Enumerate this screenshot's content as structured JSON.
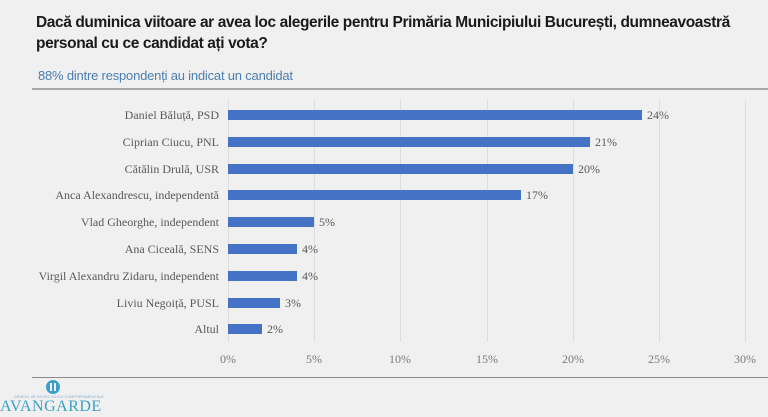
{
  "header": {
    "title": "Dacă duminica viitoare ar avea loc alegerile pentru Primăria Municipiului București, dumneavoastră personal cu ce candidat ați vota?",
    "subtitle": "88% dintre respondenți au indicat un candidat"
  },
  "logo": {
    "name": "AVANGARDE",
    "tagline": "GRUPUL DE STUDII SOCIO-COMPORTAMENTALE"
  },
  "axis": {
    "ticks": [
      "0%",
      "5%",
      "10%",
      "15%",
      "20%",
      "25%",
      "30%"
    ]
  },
  "bars": [
    {
      "label": "Daniel Băluță, PSD",
      "value": 24,
      "display": "24%"
    },
    {
      "label": "Ciprian Ciucu, PNL",
      "value": 21,
      "display": "21%"
    },
    {
      "label": "Cătălin Drulă, USR",
      "value": 20,
      "display": "20%"
    },
    {
      "label": "Anca Alexandrescu, independentă",
      "value": 17,
      "display": "17%"
    },
    {
      "label": "Vlad Gheorghe, independent",
      "value": 5,
      "display": "5%"
    },
    {
      "label": "Ana Ciceală, SENS",
      "value": 4,
      "display": "4%"
    },
    {
      "label": "Virgil Alexandru Zidaru, independent",
      "value": 4,
      "display": "4%"
    },
    {
      "label": "Liviu Negoiță, PUSL",
      "value": 3,
      "display": "3%"
    },
    {
      "label": "Altul",
      "value": 2,
      "display": "2%"
    }
  ],
  "colors": {
    "bar": "#4472c4",
    "subtitle": "#4a7fb0",
    "logo": "#3aa0c8"
  },
  "chart_data": {
    "type": "bar",
    "orientation": "horizontal",
    "title": "Dacă duminica viitoare ar avea loc alegerile pentru Primăria Municipiului București, dumneavoastră personal cu ce candidat ați vota?",
    "subtitle": "88% dintre respondenți au indicat un candidat",
    "categories": [
      "Daniel Băluță, PSD",
      "Ciprian Ciucu, PNL",
      "Cătălin Drulă, USR",
      "Anca Alexandrescu, independentă",
      "Vlad Gheorghe, independent",
      "Ana Ciceală, SENS",
      "Virgil Alexandru Zidaru, independent",
      "Liviu Negoiță, PUSL",
      "Altul"
    ],
    "values": [
      24,
      21,
      20,
      17,
      5,
      4,
      4,
      3,
      2
    ],
    "xlabel": "",
    "ylabel": "",
    "xlim": [
      0,
      30
    ],
    "xticks": [
      "0%",
      "5%",
      "10%",
      "15%",
      "20%",
      "25%",
      "30%"
    ],
    "grid": "vertical",
    "data_labels": true,
    "legend": "none"
  }
}
